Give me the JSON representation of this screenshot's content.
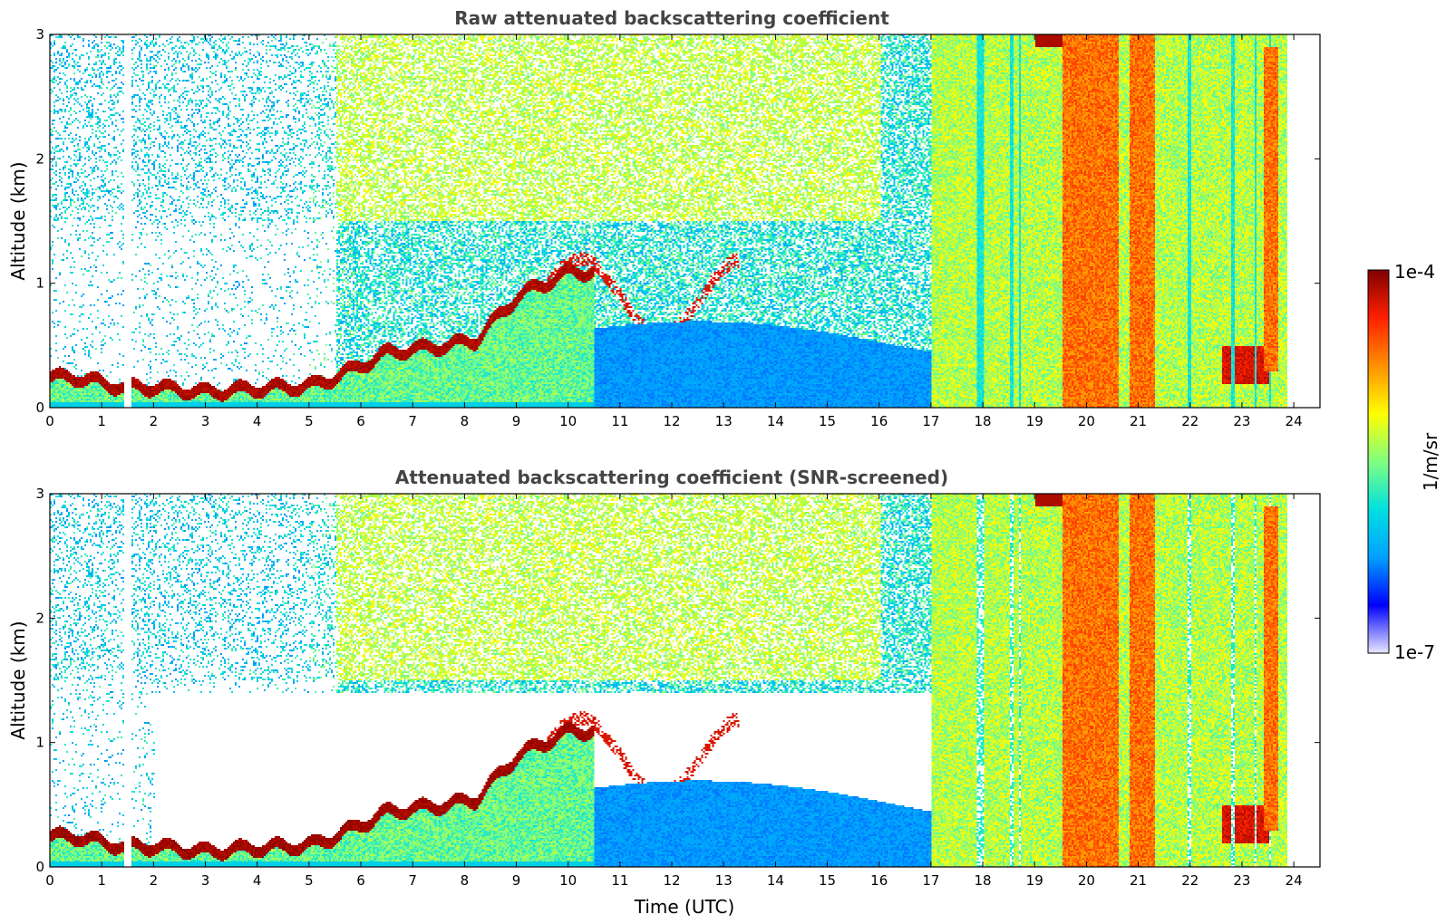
{
  "chart_data": [
    {
      "type": "heatmap",
      "title": "Raw attenuated backscattering coefficient",
      "xlabel": "",
      "ylabel": "Altitude (km)",
      "xlim": [
        0,
        24
      ],
      "ylim": [
        0,
        3
      ],
      "xticks": [
        "0",
        "1",
        "2",
        "3",
        "4",
        "5",
        "6",
        "7",
        "8",
        "9",
        "10",
        "11",
        "12",
        "13",
        "14",
        "15",
        "16",
        "17",
        "18",
        "19",
        "20",
        "21",
        "22",
        "23",
        "24"
      ],
      "yticks": [
        "0",
        "1",
        "2",
        "3"
      ],
      "screened": false,
      "features": {
        "boundary_layer_top_km": [
          {
            "t": 0.5,
            "h": 0.25
          },
          {
            "t": 1.4,
            "h": 0.17
          },
          {
            "t": 2.0,
            "h": 0.17
          },
          {
            "t": 3.0,
            "h": 0.13
          },
          {
            "t": 4.0,
            "h": 0.16
          },
          {
            "t": 5.0,
            "h": 0.18
          },
          {
            "t": 5.5,
            "h": 0.25
          },
          {
            "t": 6.5,
            "h": 0.45
          },
          {
            "t": 7.5,
            "h": 0.5
          },
          {
            "t": 8.2,
            "h": 0.55
          },
          {
            "t": 9.0,
            "h": 0.9
          },
          {
            "t": 10.0,
            "h": 1.1
          }
        ],
        "high_cloud_bands": [
          {
            "t_start": 19.5,
            "t_end": 20.6,
            "h_low": 0.0,
            "h_high": 3.0
          },
          {
            "t_start": 20.8,
            "t_end": 21.3,
            "h_low": 0.0,
            "h_high": 3.0
          },
          {
            "t_start": 23.4,
            "t_end": 23.7,
            "h_low": 0.3,
            "h_high": 2.9
          }
        ]
      }
    },
    {
      "type": "heatmap",
      "title": "Attenuated backscattering coefficient (SNR-screened)",
      "xlabel": "Time (UTC)",
      "ylabel": "Altitude (km)",
      "xlim": [
        0,
        24
      ],
      "ylim": [
        0,
        3
      ],
      "xticks": [
        "0",
        "1",
        "2",
        "3",
        "4",
        "5",
        "6",
        "7",
        "8",
        "9",
        "10",
        "11",
        "12",
        "13",
        "14",
        "15",
        "16",
        "17",
        "18",
        "19",
        "20",
        "21",
        "22",
        "23",
        "24"
      ],
      "yticks": [
        "0",
        "1",
        "2",
        "3"
      ],
      "screened": true
    }
  ],
  "colorbar": {
    "label": "1/m/sr",
    "max_label": "1e-4",
    "min_label": "1e-7",
    "vmin": 1e-07,
    "vmax": 0.0001,
    "scale": "log",
    "colormap": [
      "#ffffff",
      "#0000ff",
      "#00a0ff",
      "#00e0e0",
      "#80ff80",
      "#ffff00",
      "#ff9000",
      "#ff2000",
      "#800000"
    ]
  }
}
